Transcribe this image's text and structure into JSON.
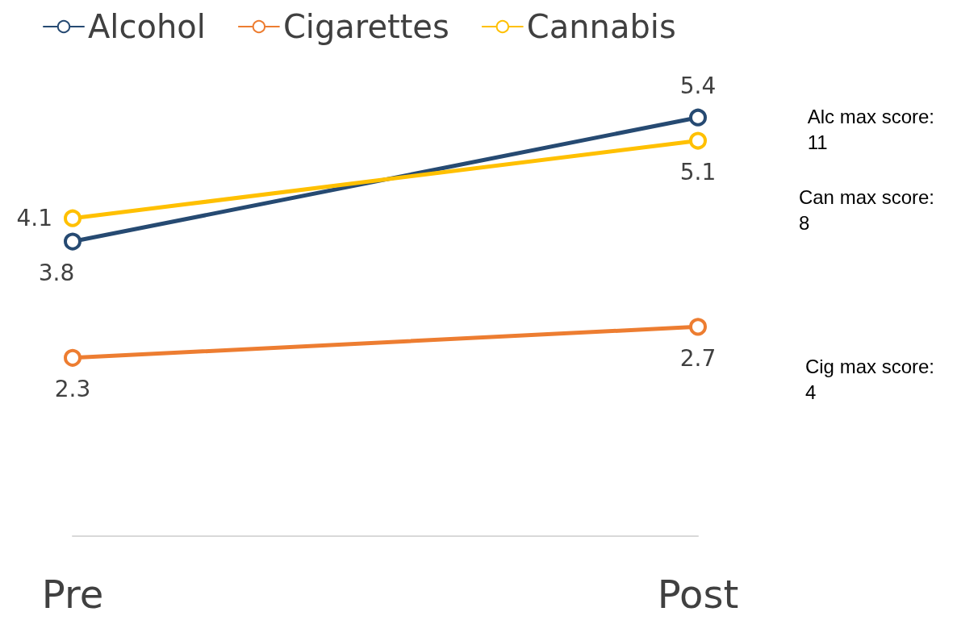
{
  "chart_data": {
    "type": "line",
    "categories": [
      "Pre",
      "Post"
    ],
    "series": [
      {
        "name": "Alcohol",
        "color": "#264a72",
        "values": [
          3.8,
          5.4
        ]
      },
      {
        "name": "Cigarettes",
        "color": "#ed7d31",
        "values": [
          2.3,
          2.7
        ]
      },
      {
        "name": "Cannabis",
        "color": "#ffc000",
        "values": [
          4.1,
          5.1
        ]
      }
    ],
    "data_labels": true,
    "legend": "top left",
    "marker": "circle",
    "line_style": "solid",
    "grid": false,
    "annotations": [
      "Alc max score:\n11",
      "Can max score:\n8",
      "Cig max score:\n4"
    ]
  }
}
